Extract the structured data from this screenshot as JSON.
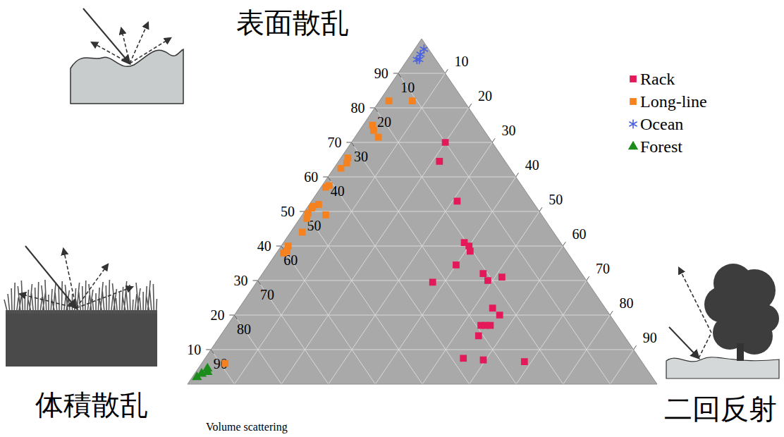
{
  "chart_data": {
    "type": "ternary",
    "legend": "top-right",
    "axes": [
      {
        "label": "表面散乱",
        "lim": [
          0,
          100
        ],
        "ticks": [
          10,
          20,
          30,
          40,
          50,
          60,
          70,
          80,
          90
        ]
      },
      {
        "label": "体積散乱",
        "title": "Volume scattering",
        "lim": [
          0,
          100
        ],
        "ticks": [
          10,
          20,
          30,
          40,
          50,
          60,
          70,
          80,
          90
        ]
      },
      {
        "label": "二回反射",
        "lim": [
          0,
          100
        ],
        "ticks": [
          10,
          20,
          30,
          40,
          50,
          60,
          70,
          80,
          90
        ]
      }
    ],
    "series": [
      {
        "name": "Rack",
        "color": "#e3195a",
        "marker": "square",
        "values": [
          [
            70,
            10,
            20
          ],
          [
            64.5,
            14,
            21.5
          ],
          [
            53,
            16,
            31
          ],
          [
            41,
            20.5,
            38.5
          ],
          [
            40,
            20,
            40
          ],
          [
            38.5,
            20.5,
            41
          ],
          [
            34.5,
            25.5,
            40
          ],
          [
            29.5,
            33,
            37.5
          ],
          [
            32,
            21,
            47
          ],
          [
            31,
            17.5,
            51.5
          ],
          [
            30,
            21,
            49
          ],
          [
            22,
            24,
            54
          ],
          [
            20,
            23.5,
            56.5
          ],
          [
            17,
            29,
            54
          ],
          [
            17,
            28,
            55
          ],
          [
            17,
            27,
            56
          ],
          [
            14,
            31,
            55
          ],
          [
            7.5,
            37.5,
            55
          ],
          [
            7,
            33.5,
            59.5
          ],
          [
            6.5,
            25,
            68.5
          ]
        ]
      },
      {
        "name": "Long-line",
        "color": "#f5821f",
        "marker": "square",
        "values": [
          [
            82,
            16,
            2
          ],
          [
            82,
            11,
            7
          ],
          [
            75,
            23,
            2
          ],
          [
            73.5,
            23.5,
            3
          ],
          [
            71.5,
            23.5,
            5
          ],
          [
            65.5,
            33,
            1.5
          ],
          [
            64,
            34,
            2
          ],
          [
            62.5,
            36,
            1.5
          ],
          [
            57.5,
            41,
            1.5
          ],
          [
            57,
            42,
            1
          ],
          [
            52,
            46,
            2
          ],
          [
            51.5,
            47.5,
            1
          ],
          [
            51,
            48,
            1
          ],
          [
            49.5,
            49.5,
            1
          ],
          [
            48,
            50.5,
            1.5
          ],
          [
            49,
            46,
            5
          ],
          [
            44,
            53.5,
            2.5
          ],
          [
            40,
            58.5,
            1.5
          ],
          [
            38.5,
            59.5,
            2
          ],
          [
            38,
            60.5,
            1.5
          ],
          [
            6,
            89,
            5
          ]
        ]
      },
      {
        "name": "Ocean",
        "color": "#4a62e0",
        "marker": "asterisk",
        "values": [
          [
            97,
            1,
            2
          ],
          [
            95.5,
            2.5,
            2
          ],
          [
            94,
            4,
            2
          ],
          [
            94,
            3.5,
            2.5
          ]
        ]
      },
      {
        "name": "Forest",
        "color": "#1c8c1c",
        "marker": "triangle",
        "values": [
          [
            2,
            97,
            1
          ],
          [
            3,
            95.5,
            1.5
          ],
          [
            3.5,
            94,
            2.5
          ],
          [
            4.5,
            93.5,
            2
          ]
        ]
      }
    ]
  }
}
